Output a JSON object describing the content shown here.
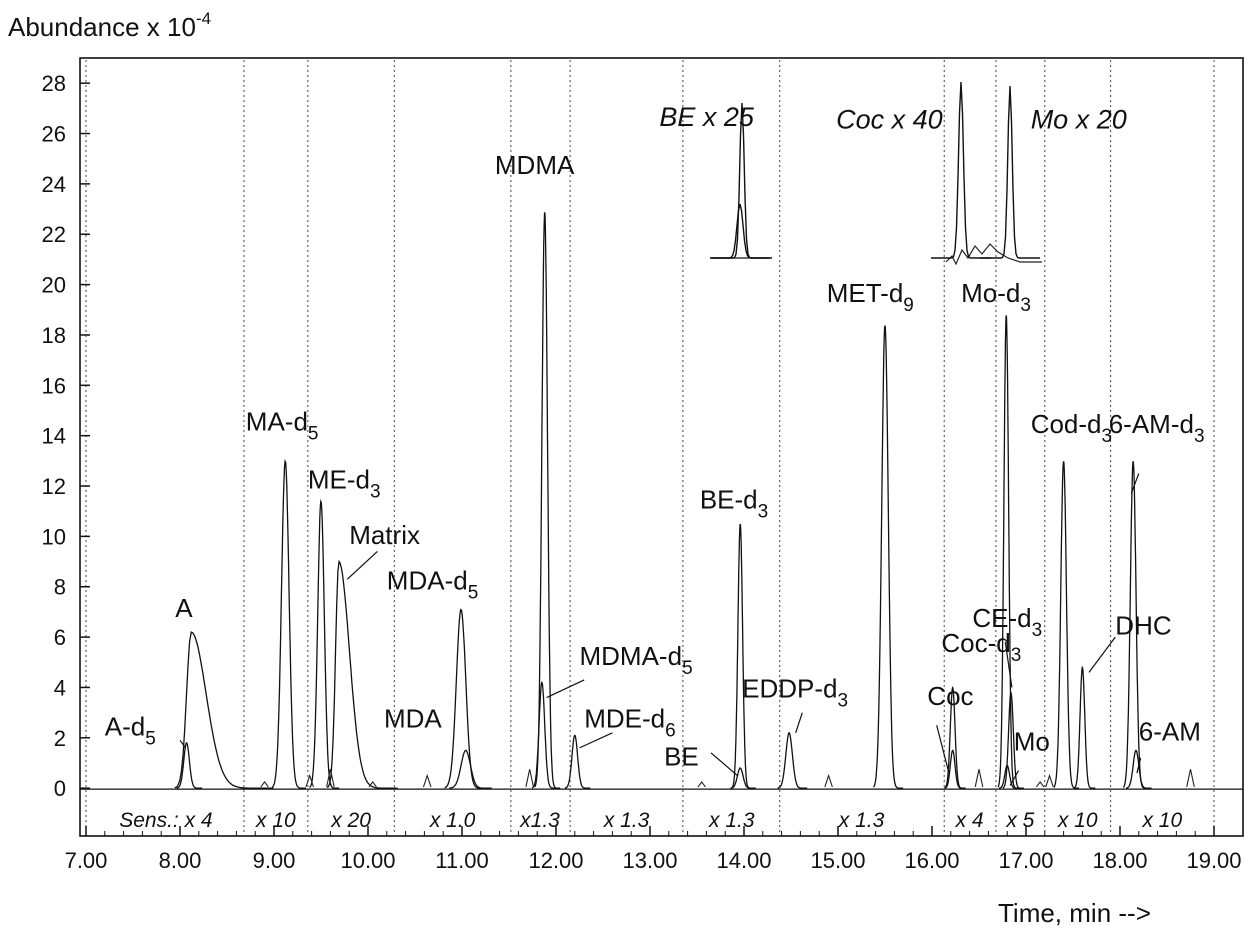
{
  "chart_data": {
    "type": "line",
    "title": "",
    "ylabel_main": "Abundance x 10",
    "ylabel_exp": "-4",
    "xlabel": "Time, min -->",
    "xlim": [
      7.0,
      19.0
    ],
    "ylim": [
      -1.9,
      29.0
    ],
    "x_ticks": [
      "7.00",
      "8.00",
      "9.00",
      "10.00",
      "11.00",
      "12.00",
      "13.00",
      "14.00",
      "15.00",
      "16.00",
      "17.00",
      "18.00",
      "19.00"
    ],
    "y_ticks": [
      "0",
      "2",
      "4",
      "6",
      "8",
      "10",
      "12",
      "14",
      "16",
      "18",
      "20",
      "22",
      "24",
      "26",
      "28"
    ],
    "segment_boundaries": [
      7.0,
      8.68,
      9.36,
      10.28,
      11.52,
      12.15,
      13.35,
      14.38,
      16.13,
      16.68,
      17.2,
      17.9,
      19.0
    ],
    "sensitivity_labels": [
      {
        "x": 7.85,
        "text": "Sens.: x 4"
      },
      {
        "x": 9.02,
        "text": "x 10"
      },
      {
        "x": 9.82,
        "text": "x 20"
      },
      {
        "x": 10.9,
        "text": "x 1.0"
      },
      {
        "x": 11.83,
        "text": "x1.3"
      },
      {
        "x": 12.75,
        "text": "x 1.3"
      },
      {
        "x": 13.87,
        "text": "x 1.3"
      },
      {
        "x": 15.25,
        "text": "x 1.3"
      },
      {
        "x": 16.4,
        "text": "x 4"
      },
      {
        "x": 16.94,
        "text": "x 5"
      },
      {
        "x": 17.55,
        "text": "x 10"
      },
      {
        "x": 18.45,
        "text": "x 10"
      }
    ],
    "peaks": [
      {
        "name": "A-d5",
        "x": 8.07,
        "height": 1.8,
        "width": 0.03
      },
      {
        "name": "A",
        "x": 8.12,
        "height": 6.2,
        "width": 0.05,
        "tail": 0.35
      },
      {
        "name": "MA-d5",
        "x": 9.12,
        "height": 13.0,
        "width": 0.04
      },
      {
        "name": "ME-d3",
        "x": 9.5,
        "height": 11.4,
        "width": 0.035
      },
      {
        "name": "Matrix",
        "x": 9.69,
        "height": 9.0,
        "width": 0.035,
        "tail": 0.25
      },
      {
        "name": "MDA-d5",
        "x": 10.99,
        "height": 7.1,
        "width": 0.05
      },
      {
        "name": "MDA",
        "x": 11.04,
        "height": 1.5,
        "width": 0.05
      },
      {
        "name": "MDMA",
        "x": 11.88,
        "height": 22.9,
        "width": 0.03
      },
      {
        "name": "MDMA-d5",
        "x": 11.85,
        "height": 4.2,
        "width": 0.03
      },
      {
        "name": "MDE-d6",
        "x": 12.2,
        "height": 2.1,
        "width": 0.03
      },
      {
        "name": "BE-d3",
        "x": 13.96,
        "height": 10.5,
        "width": 0.025
      },
      {
        "name": "BE",
        "x": 13.96,
        "height": 0.8,
        "width": 0.03
      },
      {
        "name": "EDDP-d3",
        "x": 14.48,
        "height": 2.2,
        "width": 0.035
      },
      {
        "name": "MET-d9",
        "x": 15.5,
        "height": 18.4,
        "width": 0.035
      },
      {
        "name": "Coc-d3",
        "x": 16.22,
        "height": 4.0,
        "width": 0.025
      },
      {
        "name": "Coc",
        "x": 16.22,
        "height": 1.5,
        "width": 0.025
      },
      {
        "name": "Mo-d3",
        "x": 16.79,
        "height": 18.8,
        "width": 0.025
      },
      {
        "name": "CE-d3",
        "x": 16.84,
        "height": 3.8,
        "width": 0.025
      },
      {
        "name": "Mo",
        "x": 16.8,
        "height": 0.9,
        "width": 0.025
      },
      {
        "name": "Cod-d3",
        "x": 17.4,
        "height": 13.0,
        "width": 0.03
      },
      {
        "name": "DHC",
        "x": 17.6,
        "height": 4.8,
        "width": 0.025
      },
      {
        "name": "6-AM-d3",
        "x": 18.14,
        "height": 13.0,
        "width": 0.03
      },
      {
        "name": "6-AM",
        "x": 18.17,
        "height": 1.5,
        "width": 0.03
      }
    ],
    "peak_labels": [
      {
        "main": "A-d",
        "sub": "5",
        "x": 7.2,
        "y": 2.1,
        "line": [
          [
            8.0,
            1.9
          ],
          [
            8.06,
            1.6
          ]
        ]
      },
      {
        "main": "A",
        "sub": "",
        "x": 7.95,
        "y": 6.8
      },
      {
        "main": "MA-d",
        "sub": "5",
        "x": 8.7,
        "y": 14.2
      },
      {
        "main": "ME-d",
        "sub": "3",
        "x": 9.36,
        "y": 11.9
      },
      {
        "main": "Matrix",
        "sub": "",
        "x": 9.8,
        "y": 9.7,
        "line": [
          [
            10.1,
            9.4
          ],
          [
            9.78,
            8.3
          ]
        ]
      },
      {
        "main": "MDA-d",
        "sub": "5",
        "x": 10.2,
        "y": 7.9
      },
      {
        "main": "MDA",
        "sub": "",
        "x": 10.17,
        "y": 2.4
      },
      {
        "main": "MDMA",
        "sub": "",
        "x": 11.35,
        "y": 24.4
      },
      {
        "main": "MDMA-d",
        "sub": "5",
        "x": 12.25,
        "y": 4.9,
        "line": [
          [
            12.3,
            4.3
          ],
          [
            11.9,
            3.6
          ]
        ]
      },
      {
        "main": "MDE-d",
        "sub": "6",
        "x": 12.3,
        "y": 2.4,
        "line": [
          [
            12.6,
            2.2
          ],
          [
            12.25,
            1.6
          ]
        ]
      },
      {
        "main": "BE-d",
        "sub": "3",
        "x": 13.53,
        "y": 11.1
      },
      {
        "main": "BE",
        "sub": "",
        "x": 13.15,
        "y": 0.9,
        "line": [
          [
            13.65,
            1.4
          ],
          [
            13.93,
            0.5
          ]
        ]
      },
      {
        "main": "EDDP-d",
        "sub": "3",
        "x": 13.98,
        "y": 3.6,
        "line": [
          [
            14.62,
            3.0
          ],
          [
            14.55,
            2.2
          ]
        ]
      },
      {
        "main": "MET-d",
        "sub": "9",
        "x": 14.88,
        "y": 19.3
      },
      {
        "main": "Mo-d",
        "sub": "3",
        "x": 16.31,
        "y": 19.3
      },
      {
        "main": "Cod-d",
        "sub": "3",
        "x": 17.05,
        "y": 14.1
      },
      {
        "main": "6-AM-d",
        "sub": "3",
        "x": 17.88,
        "y": 14.1,
        "line": [
          [
            18.2,
            12.5
          ],
          [
            18.12,
            11.7
          ]
        ]
      },
      {
        "main": "CE-d",
        "sub": "3",
        "x": 16.43,
        "y": 6.4,
        "line": [
          [
            16.78,
            5.8
          ],
          [
            16.85,
            4.0
          ]
        ]
      },
      {
        "main": "DHC",
        "sub": "",
        "x": 17.95,
        "y": 6.1,
        "line": [
          [
            17.95,
            6.0
          ],
          [
            17.67,
            4.6
          ]
        ]
      },
      {
        "main": "Coc-d",
        "sub": "3",
        "x": 16.1,
        "y": 5.4
      },
      {
        "main": "Coc",
        "sub": "",
        "x": 15.95,
        "y": 3.3,
        "line": [
          [
            16.05,
            2.5
          ],
          [
            16.18,
            0.6
          ]
        ]
      },
      {
        "main": "Mo",
        "sub": "",
        "x": 16.87,
        "y": 1.5,
        "line": [
          [
            16.92,
            0.7
          ],
          [
            16.83,
            0.1
          ]
        ]
      },
      {
        "main": "6-AM",
        "sub": "",
        "x": 18.2,
        "y": 1.9,
        "line": [
          [
            18.22,
            1.2
          ],
          [
            18.18,
            0.6
          ]
        ]
      }
    ],
    "insets": [
      {
        "text": "BE x 25",
        "x": 13.1,
        "y": 26.3
      },
      {
        "text": "Coc x 40",
        "x": 14.98,
        "y": 26.2
      },
      {
        "text": "Mo x 20",
        "x": 17.05,
        "y": 26.2
      }
    ]
  }
}
